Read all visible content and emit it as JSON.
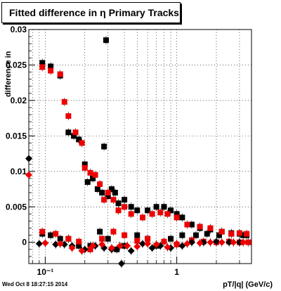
{
  "title": "Fitted difference in  η  Primary Tracks",
  "timestamp": "Wed Oct  8 18:27:15 2014",
  "colors": {
    "series_black": "#000000",
    "series_red": "#ee0000",
    "grid": "#000000"
  },
  "chart_data": {
    "type": "scatter",
    "title": "Fitted difference in  η  Primary Tracks",
    "xlabel": "pT/|q| (GeV/c)",
    "ylabel": "difference in",
    "xscale": "log",
    "xlim": [
      0.075,
      3.7
    ],
    "ylim": [
      -0.003,
      0.03
    ],
    "grid": true,
    "xtick_labels": [
      "10⁻¹",
      "1"
    ],
    "ytick_labels": [
      "0",
      "0.005",
      "0.01",
      "0.015",
      "0.02",
      "0.025",
      "0.03"
    ],
    "series": [
      {
        "marker": "square",
        "color": "#000000",
        "points": [
          [
            0.095,
            0.0253
          ],
          [
            0.11,
            0.0248
          ],
          [
            0.13,
            0.0235
          ],
          [
            0.15,
            0.0155
          ],
          [
            0.165,
            0.015
          ],
          [
            0.18,
            0.0145
          ],
          [
            0.2,
            0.011
          ],
          [
            0.21,
            0.0085
          ],
          [
            0.23,
            0.009
          ],
          [
            0.25,
            0.0075
          ],
          [
            0.27,
            0.007
          ],
          [
            0.28,
            0.0135
          ],
          [
            0.29,
            0.0285
          ],
          [
            0.3,
            0.0065
          ],
          [
            0.32,
            0.0075
          ],
          [
            0.34,
            0.007
          ],
          [
            0.36,
            0.0055
          ],
          [
            0.4,
            0.006
          ],
          [
            0.45,
            0.005
          ],
          [
            0.5,
            0.0045
          ],
          [
            0.6,
            0.0045
          ],
          [
            0.7,
            0.005
          ],
          [
            0.8,
            0.005
          ],
          [
            0.9,
            0.0045
          ],
          [
            1.0,
            0.004
          ],
          [
            1.1,
            0.0035
          ],
          [
            1.3,
            0.0025
          ],
          [
            1.5,
            0.002
          ],
          [
            1.8,
            0.0018
          ],
          [
            2.2,
            0.0015
          ],
          [
            2.6,
            0.0013
          ],
          [
            3.0,
            0.0012
          ],
          [
            3.4,
            0.001
          ],
          [
            0.095,
            0.0012
          ],
          [
            0.11,
            0.001
          ],
          [
            0.13,
            0.0005
          ],
          [
            0.15,
            0.0005
          ],
          [
            0.18,
            -0.0005
          ],
          [
            0.22,
            -0.0005
          ],
          [
            0.26,
            0.0015
          ],
          [
            0.3,
            0.0005
          ],
          [
            0.35,
            -0.001
          ],
          [
            0.4,
            -0.0005
          ],
          [
            0.5,
            0.001
          ],
          [
            0.6,
            0.0005
          ],
          [
            0.7,
            -0.0005
          ],
          [
            0.9,
            0.0005
          ],
          [
            1.1,
            0.001
          ],
          [
            1.4,
            0.001
          ],
          [
            1.7,
            0.0012
          ],
          [
            2.1,
            0.001
          ],
          [
            2.6,
            0.0012
          ],
          [
            3.2,
            0.001
          ]
        ]
      },
      {
        "marker": "square",
        "color": "#ee0000",
        "points": [
          [
            0.095,
            0.0247
          ],
          [
            0.11,
            0.0242
          ],
          [
            0.13,
            0.0237
          ],
          [
            0.14,
            0.0198
          ],
          [
            0.15,
            0.0178
          ],
          [
            0.17,
            0.0155
          ],
          [
            0.19,
            0.014
          ],
          [
            0.2,
            0.0105
          ],
          [
            0.22,
            0.0098
          ],
          [
            0.24,
            0.0095
          ],
          [
            0.26,
            0.0082
          ],
          [
            0.28,
            0.006
          ],
          [
            0.3,
            0.007
          ],
          [
            0.33,
            0.006
          ],
          [
            0.36,
            0.0045
          ],
          [
            0.4,
            0.005
          ],
          [
            0.45,
            0.004
          ],
          [
            0.55,
            0.0035
          ],
          [
            0.65,
            0.004
          ],
          [
            0.75,
            0.0042
          ],
          [
            0.85,
            0.004
          ],
          [
            1.0,
            0.0035
          ],
          [
            1.2,
            0.0025
          ],
          [
            1.5,
            0.0022
          ],
          [
            1.8,
            0.002
          ],
          [
            2.2,
            0.0015
          ],
          [
            2.6,
            0.0012
          ],
          [
            3.0,
            0.0013
          ],
          [
            3.4,
            0.0012
          ],
          [
            0.095,
            0.0015
          ],
          [
            0.12,
            0.0012
          ],
          [
            0.15,
            0.0005
          ],
          [
            0.18,
            0.0001
          ],
          [
            0.22,
            -0.001
          ],
          [
            0.27,
            0.0005
          ],
          [
            0.33,
            0.0015
          ],
          [
            0.4,
            0.001
          ],
          [
            0.5,
            0.0002
          ],
          [
            0.6,
            0.0005
          ],
          [
            0.8,
            0.0001
          ],
          [
            1.0,
            -0.0003
          ],
          [
            1.3,
            0.0003
          ],
          [
            1.6,
            0.0001
          ],
          [
            2.0,
            0.0
          ],
          [
            2.5,
            0.0001
          ],
          [
            3.0,
            0.0
          ],
          [
            3.5,
            0.0
          ]
        ]
      },
      {
        "marker": "diamond",
        "color": "#000000",
        "points": [
          [
            0.075,
            0.0118
          ],
          [
            0.09,
            -0.0002
          ],
          [
            0.12,
            -0.0003
          ],
          [
            0.14,
            -0.0003
          ],
          [
            0.16,
            -0.0005
          ],
          [
            0.2,
            -0.001
          ],
          [
            0.24,
            -0.0005
          ],
          [
            0.28,
            -0.0008
          ],
          [
            0.32,
            -0.001
          ],
          [
            0.38,
            -0.003
          ],
          [
            0.45,
            -0.0012
          ],
          [
            0.55,
            -0.0002
          ],
          [
            0.65,
            -0.0008
          ],
          [
            0.75,
            -0.0005
          ],
          [
            0.9,
            -0.0008
          ],
          [
            1.1,
            -0.0005
          ],
          [
            1.3,
            0.0
          ],
          [
            1.6,
            0.0
          ],
          [
            2.0,
            0.0001
          ],
          [
            2.5,
            0.0
          ],
          [
            3.0,
            0.0
          ]
        ]
      },
      {
        "marker": "diamond",
        "color": "#ee0000",
        "points": [
          [
            0.075,
            0.0095
          ],
          [
            0.1,
            -0.0001
          ],
          [
            0.13,
            -0.0002
          ],
          [
            0.16,
            -0.0008
          ],
          [
            0.19,
            -0.0012
          ],
          [
            0.23,
            -0.0005
          ],
          [
            0.27,
            -0.0003
          ],
          [
            0.32,
            -0.0008
          ],
          [
            0.37,
            -0.0005
          ],
          [
            0.42,
            -0.0005
          ],
          [
            0.5,
            -0.0006
          ],
          [
            0.6,
            -0.0002
          ],
          [
            0.7,
            -0.0003
          ],
          [
            0.85,
            -0.0007
          ],
          [
            1.0,
            -0.0002
          ],
          [
            1.2,
            -0.0002
          ],
          [
            1.5,
            -0.0001
          ],
          [
            1.8,
            0.0
          ],
          [
            2.2,
            0.0
          ],
          [
            2.7,
            0.0
          ],
          [
            3.2,
            0.0
          ]
        ]
      }
    ]
  }
}
